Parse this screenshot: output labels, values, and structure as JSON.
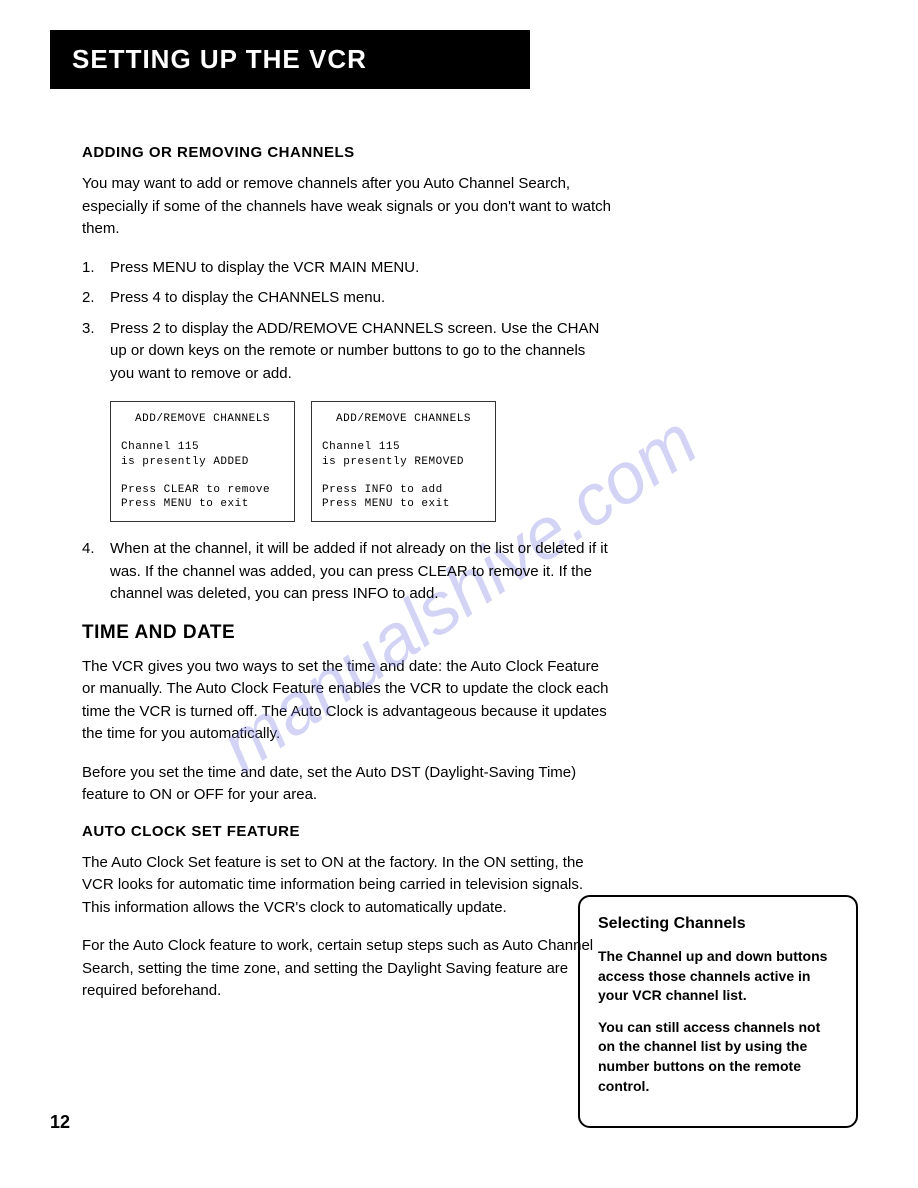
{
  "page": {
    "title": "SETTING UP THE VCR",
    "page_number": "12",
    "watermark": "manualshive.com"
  },
  "section1": {
    "heading": "ADDING OR REMOVING CHANNELS",
    "intro": "You may want to add or remove channels after you Auto Channel Search, especially if some of the channels have weak signals or you don't want to watch them.",
    "steps": [
      "Press MENU to display the VCR MAIN MENU.",
      "Press 4 to display the CHANNELS menu.",
      "Press 2 to display the ADD/REMOVE CHANNELS screen. Use the CHAN up or down keys on the remote or number buttons to go to the channels you want to remove or add.",
      "When at the channel, it will be added if not already on the list or deleted if it was. If the channel was added, you can press CLEAR to remove it. If the channel was deleted, you can press INFO to add."
    ]
  },
  "screens": {
    "left": {
      "title": "ADD/REMOVE CHANNELS",
      "line1": "Channel 115",
      "line2": "is presently ADDED",
      "line3": "Press CLEAR to remove",
      "line4": "Press MENU to exit"
    },
    "right": {
      "title": "ADD/REMOVE CHANNELS",
      "line1": "Channel 115",
      "line2": "is presently REMOVED",
      "line3": "Press INFO to add",
      "line4": "Press MENU to exit"
    }
  },
  "section2": {
    "heading": "TIME AND DATE",
    "para1": "The VCR gives you two ways to set the time and date: the Auto Clock Feature or manually. The Auto Clock Feature enables the VCR to update the clock each time the VCR is turned off. The Auto Clock is advantageous because it updates the time for you automatically.",
    "para2": "Before you set the time and date, set the Auto DST (Daylight-Saving Time) feature to ON or OFF for your area."
  },
  "section3": {
    "heading": "AUTO CLOCK SET FEATURE",
    "para1": "The Auto Clock Set feature is set to ON at the factory. In the ON setting, the VCR looks for automatic time information being carried in television signals. This information allows the VCR's clock to automatically update.",
    "para2": "For the Auto Clock feature to work, certain setup steps such as Auto Channel Search, setting the time zone, and setting the Daylight Saving feature are required beforehand."
  },
  "sidebar": {
    "title": "Selecting Channels",
    "para1": "The Channel up and down buttons access those channels active in your VCR channel list.",
    "para2": "You can still access channels not on the channel list by using the number buttons on the remote control."
  }
}
